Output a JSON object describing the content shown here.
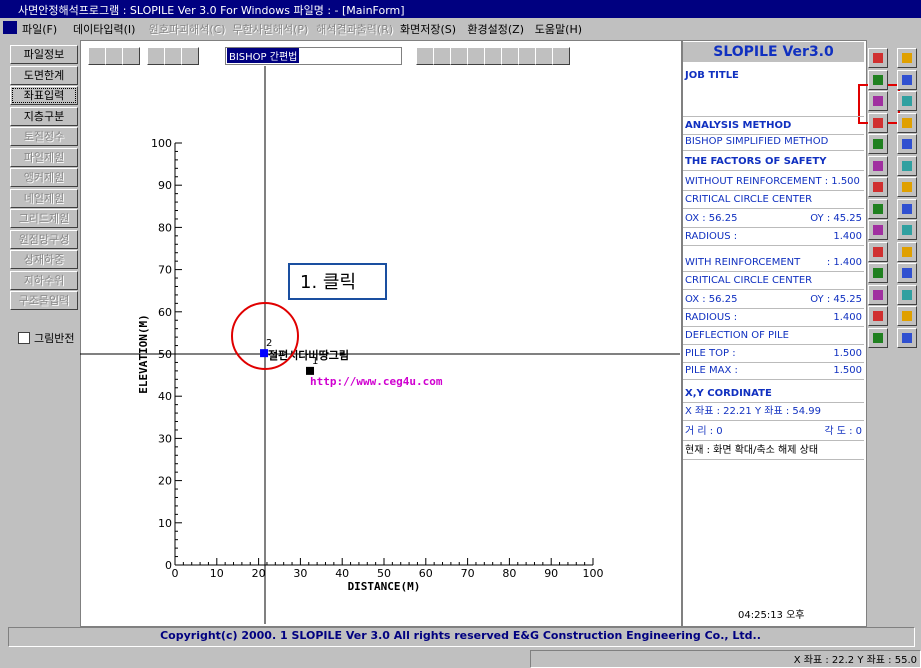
{
  "title_bar": {
    "title": "사면안정해석프로그램 : SLOPILE Ver 3.0 For Windows 파일명 : - [MainForm]"
  },
  "menu": {
    "items": [
      "파일(F)",
      "데이타입력(I)",
      "원호파괴해석(C)",
      "무한사면해석(P)",
      "해석결과출력(R)",
      "화면저장(S)",
      "환경설정(Z)",
      "도움말(H)"
    ]
  },
  "left_buttons": [
    "파일정보",
    "도면한계",
    "좌표입력",
    "지층구분",
    "토질정수",
    "파일제원",
    "앵커제원",
    "네일제원",
    "그리드제원",
    "원점망구성",
    "상재하중",
    "지하수위",
    "구조물입력"
  ],
  "checkbox": "그림반전",
  "toolbar": {
    "combo": "BISHOP 간편법"
  },
  "plot": {
    "xlabel": "DISTANCE(M)",
    "ylabel": "ELEVATION(M)",
    "xlim": [
      0,
      100
    ],
    "ylim": [
      0,
      100
    ],
    "xticks": [
      0,
      10,
      20,
      30,
      40,
      50,
      60,
      70,
      80,
      90,
      100
    ],
    "yticks": [
      0,
      10,
      20,
      30,
      40,
      50,
      60,
      70,
      80,
      90,
      100
    ],
    "points": [
      {
        "label": "1",
        "x": 32.3,
        "y": 46,
        "color": "#000000"
      },
      {
        "label": "2",
        "x": 21.3,
        "y": 50.2,
        "color": "#0000ff"
      }
    ],
    "texts": [
      "절편시다버땅그림",
      "http://www.ceg4u.com"
    ]
  },
  "annotation": "1. 클릭",
  "right_panel": {
    "header": "SLOPILE Ver3.0",
    "rows": [
      {
        "left": "JOB TITLE"
      },
      {
        "left": "ANALYSIS METHOD"
      },
      {
        "left": "BISHOP SIMPLIFIED METHOD"
      },
      {
        "left": "THE FACTORS OF SAFETY"
      },
      {
        "left": "WITHOUT REINFORCEMENT : 1.500"
      },
      {
        "left": "CRITICAL CIRCLE CENTER"
      },
      {
        "left": "OX :  56.25",
        "right": "OY :  45.25"
      },
      {
        "left": "RADIOUS :",
        "right": "1.400"
      },
      {
        "left": "WITH REINFORCEMENT",
        "right": ": 1.400"
      },
      {
        "left": "CRITICAL CIRCLE CENTER"
      },
      {
        "left": "OX :  56.25",
        "right": "OY :  45.25"
      },
      {
        "left": "RADIOUS :",
        "right": "1.400"
      },
      {
        "left": "DEFLECTION OF PILE"
      },
      {
        "left": "PILE TOP :",
        "right": "1.500"
      },
      {
        "left": "PILE MAX :",
        "right": "1.500"
      },
      {
        "left": "X,Y CORDINATE"
      },
      {
        "left": "X 좌표 :   22.21   Y 좌표 :  54.99"
      },
      {
        "left": "거  리 :  0",
        "right": "각  도 :  0"
      },
      {
        "left": "현재 : 화면 확대/축소 해제 상태"
      }
    ],
    "time": "04:25:13 오후"
  },
  "copyright": "Copyright(c) 2000. 1 SLOPILE Ver 3.0 All rights reserved E&G Construction Engineering Co., Ltd..",
  "status": "X 좌표 :  22.2 Y 좌표 :  55.0"
}
